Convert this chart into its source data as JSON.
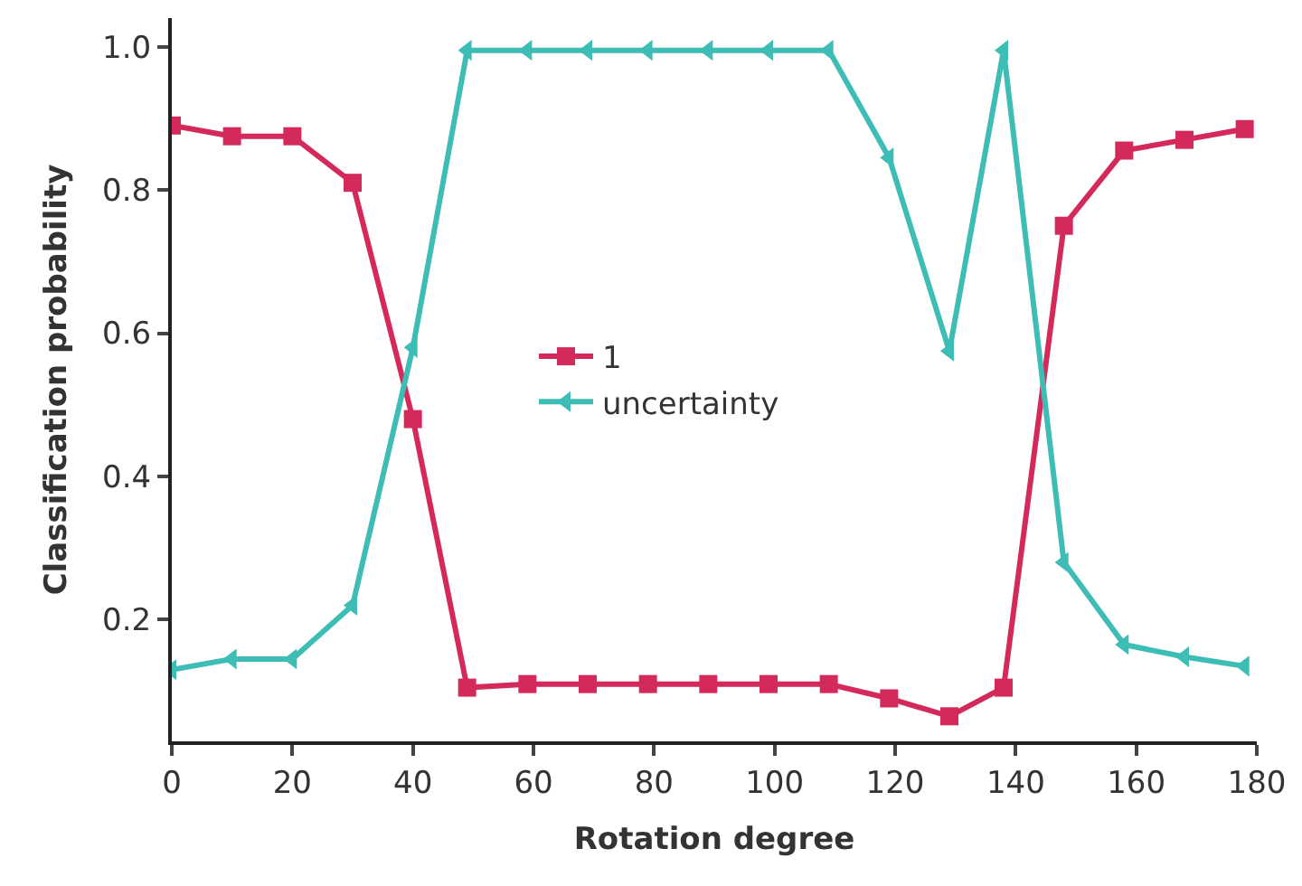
{
  "chart_data": {
    "type": "line",
    "xlabel": "Rotation degree",
    "ylabel": "Classification probability",
    "x": [
      0,
      10,
      20,
      30,
      40,
      49,
      59,
      69,
      79,
      89,
      99,
      109,
      119,
      129,
      138,
      148,
      158,
      168,
      178
    ],
    "series": [
      {
        "name": "1",
        "color": "#d42a5b",
        "marker": "square",
        "values": [
          0.89,
          0.875,
          0.875,
          0.81,
          0.48,
          0.105,
          0.11,
          0.11,
          0.11,
          0.11,
          0.11,
          0.11,
          0.09,
          0.065,
          0.105,
          0.75,
          0.855,
          0.87,
          0.885
        ]
      },
      {
        "name": "uncertainty",
        "color": "#3dbdb5",
        "marker": "triangle",
        "values": [
          0.13,
          0.145,
          0.145,
          0.22,
          0.58,
          0.995,
          0.995,
          0.995,
          0.995,
          0.995,
          0.995,
          0.995,
          0.845,
          0.575,
          0.995,
          0.28,
          0.165,
          0.148,
          0.135
        ]
      }
    ],
    "xlim": [
      0,
      180
    ],
    "ylim": [
      0.03,
      1.04
    ],
    "xticks": [
      0,
      20,
      40,
      60,
      80,
      100,
      120,
      140,
      160,
      180
    ],
    "yticks": [
      0.2,
      0.4,
      0.6,
      0.8,
      {
        "value": 1.0,
        "label": "1.0"
      }
    ],
    "legend": "center",
    "line_style": "solid"
  }
}
